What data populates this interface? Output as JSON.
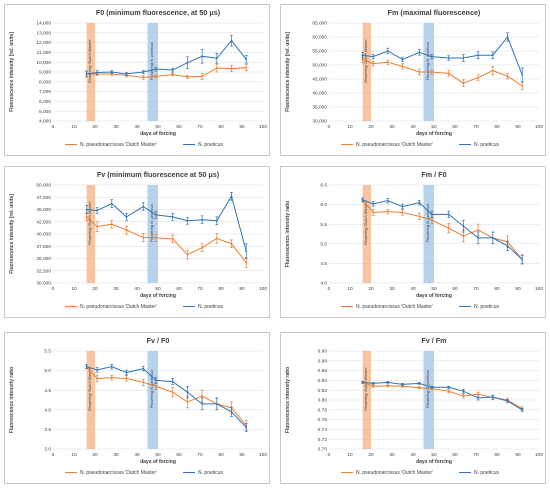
{
  "chart_data": [
    {
      "type": "line",
      "title": "F0 (minimum fluorescence, at 50 μs)",
      "xlabel": "days of forcing",
      "ylabel": "Fluorescence intensity [rel. units]",
      "xlim": [
        0,
        100
      ],
      "ylim": [
        4000,
        14000
      ],
      "xticks": [
        "0",
        "10",
        "20",
        "30",
        "40",
        "50",
        "60",
        "70",
        "80",
        "90",
        "100"
      ],
      "yticks": [
        "4,000",
        "5,000",
        "6,000",
        "7,000",
        "8,000",
        "9,000",
        "10,000",
        "11,000",
        "12,000",
        "13,000",
        "14,000"
      ],
      "bands": [
        {
          "x": [
            16,
            20
          ],
          "color": "#f4b183",
          "label": "Flowering 'Dutch Master'"
        },
        {
          "x": [
            45,
            50
          ],
          "color": "#9dc3e6",
          "label": "Flowering N. poeticus"
        }
      ],
      "series": [
        {
          "name": "N. pseudonarcissus 'Dutch Master'",
          "color": "#ed7d31",
          "x": [
            16,
            21,
            28,
            35,
            43,
            49,
            57,
            64,
            71,
            78,
            85,
            92
          ],
          "y": [
            8800,
            8800,
            8800,
            8650,
            8450,
            8550,
            8750,
            8500,
            8550,
            9400,
            9350,
            9450
          ],
          "err": [
            300,
            150,
            150,
            150,
            200,
            150,
            150,
            150,
            300,
            400,
            300,
            300
          ]
        },
        {
          "name": "N. poeticus",
          "color": "#2e75b6",
          "x": [
            16,
            21,
            28,
            35,
            43,
            49,
            57,
            64,
            71,
            78,
            85,
            92
          ],
          "y": [
            8800,
            8950,
            9000,
            8800,
            9000,
            9300,
            9200,
            9950,
            10600,
            10400,
            12200,
            10300
          ],
          "err": [
            300,
            200,
            150,
            150,
            150,
            200,
            200,
            600,
            700,
            500,
            550,
            400
          ]
        }
      ]
    },
    {
      "type": "line",
      "title": "Fm (maximal fluorescence)",
      "xlabel": "days of forcing",
      "ylabel": "Fluorescence intensity [rel. units]",
      "xlim": [
        0,
        100
      ],
      "ylim": [
        30000,
        65000
      ],
      "xticks": [
        "0",
        "10",
        "20",
        "30",
        "40",
        "50",
        "60",
        "70",
        "80",
        "90",
        "100"
      ],
      "yticks": [
        "30,000",
        "35,000",
        "40,000",
        "45,000",
        "50,000",
        "55,000",
        "60,000",
        "65,000"
      ],
      "bands": [
        {
          "x": [
            16,
            20
          ],
          "color": "#f4b183",
          "label": "Flowering 'Dutch Master'"
        },
        {
          "x": [
            45,
            50
          ],
          "color": "#9dc3e6",
          "label": "Flowering N. poeticus"
        }
      ],
      "series": [
        {
          "name": "N. pseudonarcissus 'Dutch Master'",
          "color": "#ed7d31",
          "x": [
            16,
            21,
            28,
            35,
            43,
            49,
            57,
            64,
            71,
            78,
            85,
            92
          ],
          "y": [
            52000,
            50500,
            51000,
            49500,
            47500,
            47500,
            47000,
            43500,
            45500,
            48000,
            46000,
            42500
          ],
          "err": [
            1200,
            800,
            800,
            1000,
            1000,
            800,
            1000,
            1200,
            1000,
            1500,
            1000,
            1200
          ]
        },
        {
          "name": "N. poeticus",
          "color": "#2e75b6",
          "x": [
            16,
            21,
            28,
            35,
            43,
            49,
            57,
            64,
            71,
            78,
            85,
            92
          ],
          "y": [
            53500,
            53000,
            55000,
            52000,
            54500,
            53000,
            52500,
            52500,
            53500,
            53500,
            60000,
            46500
          ],
          "err": [
            1000,
            800,
            1000,
            800,
            1000,
            800,
            800,
            1200,
            1200,
            1200,
            1500,
            2500
          ]
        }
      ]
    },
    {
      "type": "line",
      "title": "Fv (minimum fluorescence at 50 μs)",
      "xlabel": "days of forcing",
      "ylabel": "Fluorescence intensity [rel. units]",
      "xlim": [
        0,
        100
      ],
      "ylim": [
        30000,
        50000
      ],
      "xticks": [
        "0",
        "10",
        "20",
        "30",
        "40",
        "50",
        "60",
        "70",
        "80",
        "90",
        "100"
      ],
      "yticks": [
        "30,000",
        "32,500",
        "35,000",
        "37,500",
        "40,000",
        "42,500",
        "45,000",
        "47,500",
        "50,000"
      ],
      "bands": [
        {
          "x": [
            16,
            20
          ],
          "color": "#f4b183",
          "label": "Flowering 'Dutch Master'"
        },
        {
          "x": [
            45,
            50
          ],
          "color": "#9dc3e6",
          "label": "Flowering N. poeticus"
        }
      ],
      "series": [
        {
          "name": "N. pseudonarcissus 'Dutch Master'",
          "color": "#ed7d31",
          "x": [
            16,
            21,
            28,
            35,
            43,
            49,
            57,
            64,
            71,
            78,
            85,
            92
          ],
          "y": [
            43500,
            41500,
            42000,
            40800,
            39300,
            39200,
            39000,
            35800,
            37200,
            39100,
            38000,
            34200
          ],
          "err": [
            800,
            1000,
            800,
            800,
            800,
            700,
            800,
            900,
            800,
            1000,
            800,
            1000
          ]
        },
        {
          "name": "N. poeticus",
          "color": "#2e75b6",
          "x": [
            16,
            21,
            28,
            35,
            43,
            49,
            57,
            64,
            71,
            78,
            85,
            92
          ],
          "y": [
            45000,
            44800,
            46200,
            43500,
            45600,
            43900,
            43500,
            42700,
            42900,
            42700,
            47700,
            36500
          ],
          "err": [
            800,
            600,
            800,
            700,
            800,
            700,
            700,
            700,
            800,
            800,
            800,
            1500
          ]
        }
      ]
    },
    {
      "type": "line",
      "title": "Fm / F0",
      "xlabel": "days of forcing",
      "ylabel": "Fluorescence intensity ratio",
      "xlim": [
        0,
        100
      ],
      "ylim": [
        4.0,
        6.5
      ],
      "xticks": [
        "0",
        "10",
        "20",
        "30",
        "40",
        "50",
        "60",
        "70",
        "80",
        "90",
        "100"
      ],
      "yticks": [
        "4.0",
        "4.5",
        "5.0",
        "5.5",
        "6.0",
        "6.5"
      ],
      "bands": [
        {
          "x": [
            16,
            20
          ],
          "color": "#f4b183",
          "label": "Flowering 'Dutch Master'"
        },
        {
          "x": [
            45,
            50
          ],
          "color": "#9dc3e6",
          "label": "Flowering N. poeticus"
        }
      ],
      "series": [
        {
          "name": "N. pseudonarcissus 'Dutch Master'",
          "color": "#ed7d31",
          "x": [
            16,
            21,
            28,
            35,
            43,
            49,
            57,
            64,
            71,
            78,
            85,
            92
          ],
          "y": [
            6.12,
            5.8,
            5.82,
            5.8,
            5.7,
            5.6,
            5.4,
            5.2,
            5.35,
            5.15,
            5.05,
            4.6
          ],
          "err": [
            0.05,
            0.08,
            0.06,
            0.07,
            0.08,
            0.08,
            0.12,
            0.15,
            0.15,
            0.15,
            0.15,
            0.12
          ]
        },
        {
          "name": "N. poeticus",
          "color": "#2e75b6",
          "x": [
            16,
            21,
            28,
            35,
            43,
            49,
            57,
            64,
            71,
            78,
            85,
            92
          ],
          "y": [
            6.12,
            6.02,
            6.1,
            5.95,
            6.05,
            5.75,
            5.75,
            5.45,
            5.15,
            5.15,
            4.95,
            4.6
          ],
          "err": [
            0.05,
            0.06,
            0.06,
            0.06,
            0.06,
            0.08,
            0.08,
            0.15,
            0.15,
            0.15,
            0.12,
            0.1
          ]
        }
      ]
    },
    {
      "type": "line",
      "title": "Fv / F0",
      "xlabel": "days of forcing",
      "ylabel": "Fluorescence intensity ratio",
      "xlim": [
        0,
        100
      ],
      "ylim": [
        3.0,
        5.5
      ],
      "xticks": [
        "0",
        "10",
        "20",
        "30",
        "40",
        "50",
        "60",
        "70",
        "80",
        "90",
        "100"
      ],
      "yticks": [
        "3.0",
        "3.5",
        "4.0",
        "4.5",
        "5.0",
        "5.5"
      ],
      "bands": [
        {
          "x": [
            16,
            20
          ],
          "color": "#f4b183",
          "label": "Flowering 'Dutch Master'"
        },
        {
          "x": [
            45,
            50
          ],
          "color": "#9dc3e6",
          "label": "Flowering N. poeticus"
        }
      ],
      "series": [
        {
          "name": "N. pseudonarcissus 'Dutch Master'",
          "color": "#ed7d31",
          "x": [
            16,
            21,
            28,
            35,
            43,
            49,
            57,
            64,
            71,
            78,
            85,
            92
          ],
          "y": [
            5.1,
            4.8,
            4.82,
            4.8,
            4.7,
            4.6,
            4.45,
            4.2,
            4.35,
            4.15,
            4.05,
            3.6
          ],
          "err": [
            0.05,
            0.08,
            0.06,
            0.07,
            0.08,
            0.08,
            0.12,
            0.15,
            0.15,
            0.15,
            0.15,
            0.12
          ]
        },
        {
          "name": "N. poeticus",
          "color": "#2e75b6",
          "x": [
            16,
            21,
            28,
            35,
            43,
            49,
            57,
            64,
            71,
            78,
            85,
            92
          ],
          "y": [
            5.1,
            5.02,
            5.1,
            4.95,
            5.05,
            4.75,
            4.72,
            4.45,
            4.15,
            4.15,
            3.95,
            3.55
          ],
          "err": [
            0.05,
            0.06,
            0.06,
            0.06,
            0.06,
            0.08,
            0.08,
            0.15,
            0.15,
            0.15,
            0.12,
            0.1
          ]
        }
      ]
    },
    {
      "type": "line",
      "title": "Fv / Fm",
      "xlabel": "days of forcing",
      "ylabel": "Fluorescence intensity ratio",
      "xlim": [
        0,
        100
      ],
      "ylim": [
        0.7,
        0.9
      ],
      "xticks": [
        "0",
        "10",
        "20",
        "30",
        "40",
        "50",
        "60",
        "70",
        "80",
        "90",
        "100"
      ],
      "yticks": [
        "0.70",
        "0.72",
        "0.74",
        "0.76",
        "0.78",
        "0.80",
        "0.82",
        "0.84",
        "0.86",
        "0.88",
        "0.90"
      ],
      "bands": [
        {
          "x": [
            16,
            20
          ],
          "color": "#f4b183",
          "label": "Flowering 'Dutch Master'"
        },
        {
          "x": [
            45,
            50
          ],
          "color": "#9dc3e6",
          "label": "Flowering N. poeticus"
        }
      ],
      "series": [
        {
          "name": "N. pseudonarcissus 'Dutch Master'",
          "color": "#ed7d31",
          "x": [
            16,
            21,
            28,
            35,
            43,
            49,
            57,
            64,
            71,
            78,
            85,
            92
          ],
          "y": [
            0.836,
            0.828,
            0.829,
            0.828,
            0.825,
            0.823,
            0.818,
            0.808,
            0.812,
            0.805,
            0.8,
            0.782
          ],
          "err": [
            0.002,
            0.002,
            0.002,
            0.002,
            0.002,
            0.002,
            0.003,
            0.004,
            0.004,
            0.004,
            0.004,
            0.004
          ]
        },
        {
          "name": "N. poeticus",
          "color": "#2e75b6",
          "x": [
            16,
            21,
            28,
            35,
            43,
            49,
            57,
            64,
            71,
            78,
            85,
            92
          ],
          "y": [
            0.836,
            0.834,
            0.836,
            0.832,
            0.834,
            0.826,
            0.826,
            0.818,
            0.804,
            0.806,
            0.798,
            0.78
          ],
          "err": [
            0.002,
            0.002,
            0.002,
            0.002,
            0.002,
            0.002,
            0.002,
            0.004,
            0.004,
            0.004,
            0.003,
            0.003
          ]
        }
      ]
    }
  ]
}
